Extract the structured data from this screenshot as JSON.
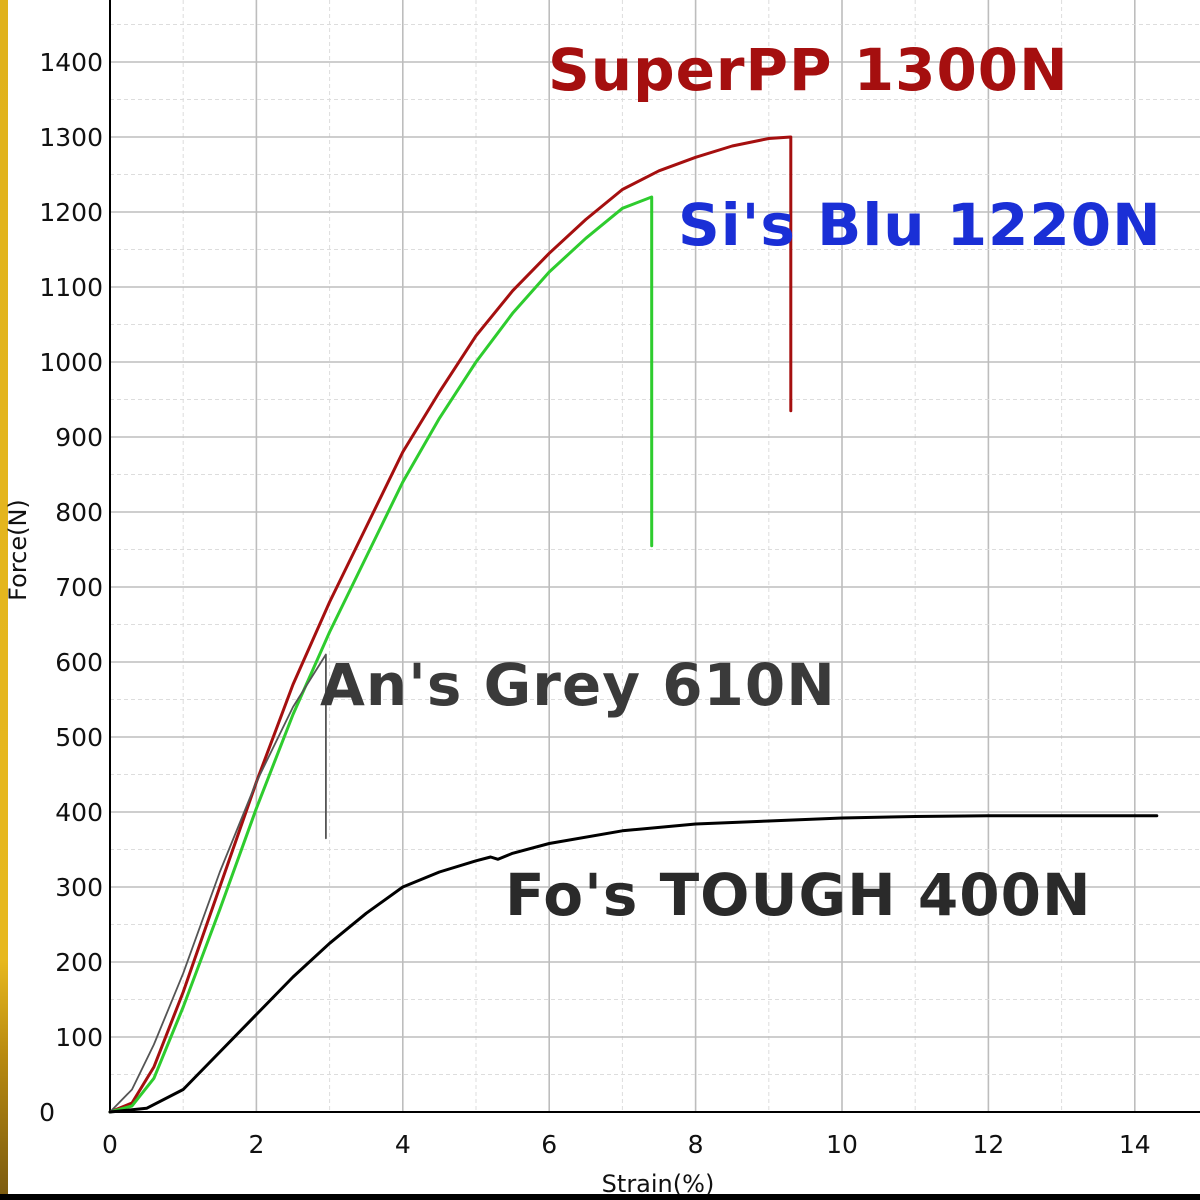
{
  "chart_data": {
    "type": "line",
    "title": "",
    "xlabel": "Strain(%)",
    "ylabel": "Force(N)",
    "xlim": [
      0,
      15
    ],
    "ylim": [
      0,
      1460
    ],
    "grid": true,
    "xticks": [
      0,
      2,
      4,
      6,
      8,
      10,
      12,
      14
    ],
    "yticks": [
      0,
      100,
      200,
      300,
      400,
      500,
      600,
      700,
      800,
      900,
      1000,
      1100,
      1200,
      1300,
      1400
    ],
    "series": [
      {
        "color": "#a50f0f",
        "points": [
          [
            0,
            0
          ],
          [
            0.3,
            12
          ],
          [
            0.6,
            60
          ],
          [
            1,
            160
          ],
          [
            1.5,
            300
          ],
          [
            2,
            440
          ],
          [
            2.5,
            570
          ],
          [
            3,
            680
          ],
          [
            3.5,
            780
          ],
          [
            4,
            880
          ],
          [
            4.5,
            960
          ],
          [
            5,
            1035
          ],
          [
            5.5,
            1095
          ],
          [
            6,
            1145
          ],
          [
            6.5,
            1190
          ],
          [
            7,
            1230
          ],
          [
            7.5,
            1255
          ],
          [
            8,
            1273
          ],
          [
            8.5,
            1288
          ],
          [
            9,
            1298
          ],
          [
            9.3,
            1300
          ],
          [
            9.3,
            935
          ]
        ]
      },
      {
        "color": "#2ecc2e",
        "points": [
          [
            0,
            0
          ],
          [
            0.3,
            8
          ],
          [
            0.6,
            45
          ],
          [
            1,
            140
          ],
          [
            1.5,
            270
          ],
          [
            2,
            405
          ],
          [
            2.5,
            530
          ],
          [
            3,
            640
          ],
          [
            3.5,
            740
          ],
          [
            4,
            840
          ],
          [
            4.5,
            925
          ],
          [
            5,
            1000
          ],
          [
            5.5,
            1065
          ],
          [
            6,
            1120
          ],
          [
            6.5,
            1165
          ],
          [
            7,
            1205
          ],
          [
            7.4,
            1220
          ],
          [
            7.4,
            755
          ]
        ]
      },
      {
        "color": "#555555",
        "points": [
          [
            0,
            0
          ],
          [
            0.3,
            30
          ],
          [
            0.6,
            90
          ],
          [
            1,
            185
          ],
          [
            1.5,
            320
          ],
          [
            2,
            440
          ],
          [
            2.5,
            540
          ],
          [
            2.95,
            610
          ],
          [
            2.95,
            365
          ]
        ]
      },
      {
        "color": "#000000",
        "points": [
          [
            0,
            0
          ],
          [
            0.5,
            5
          ],
          [
            1,
            30
          ],
          [
            1.5,
            80
          ],
          [
            2,
            130
          ],
          [
            2.5,
            180
          ],
          [
            3,
            225
          ],
          [
            3.5,
            265
          ],
          [
            4,
            300
          ],
          [
            4.5,
            320
          ],
          [
            5,
            335
          ],
          [
            5.2,
            340
          ],
          [
            5.3,
            337
          ],
          [
            5.5,
            345
          ],
          [
            6,
            358
          ],
          [
            7,
            375
          ],
          [
            8,
            384
          ],
          [
            9,
            388
          ],
          [
            10,
            392
          ],
          [
            11,
            394
          ],
          [
            12,
            395
          ],
          [
            13,
            395
          ],
          [
            14.3,
            395
          ]
        ]
      }
    ],
    "annotations": [
      {
        "text": "SuperPP 1300N",
        "color": "#a50f0f"
      },
      {
        "text": "Si's Blu 1220N",
        "color": "#1a2fd6"
      },
      {
        "text": "An's Grey 610N",
        "color": "#3a3a3a"
      },
      {
        "text": "Fo's TOUGH 400N",
        "color": "#2a2a2a"
      }
    ]
  }
}
